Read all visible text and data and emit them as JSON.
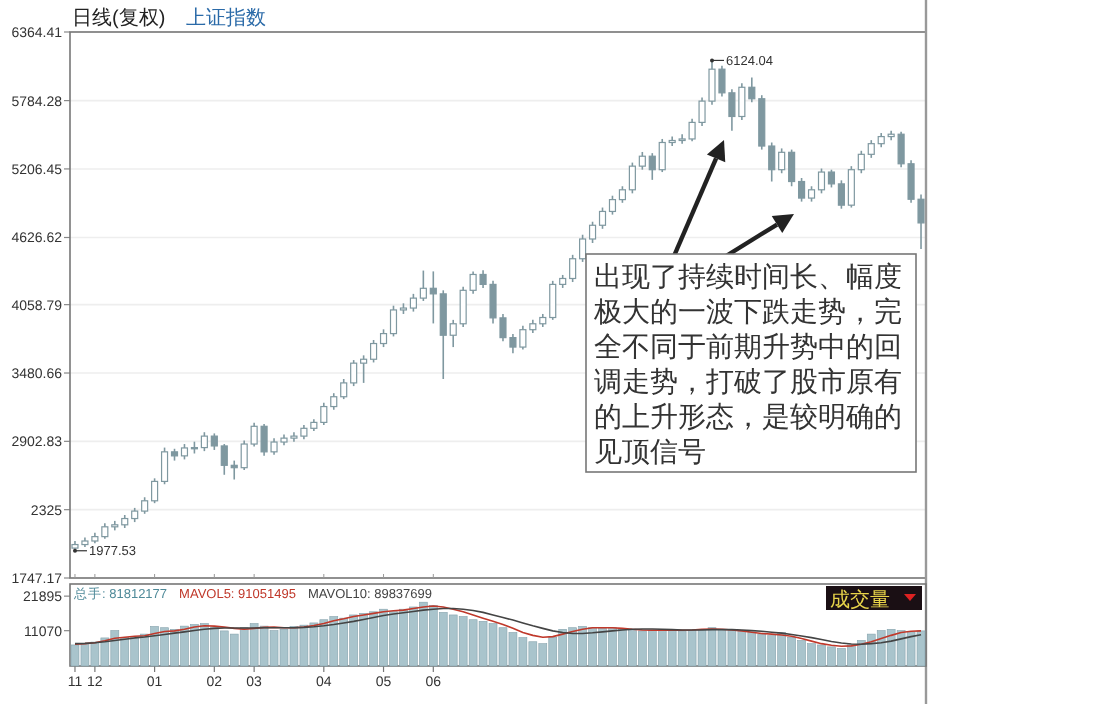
{
  "chart_data": [
    {
      "type": "candlestick",
      "color": "#7f98a0",
      "ylim": [
        1747.17,
        6364.41
      ],
      "yticks": [
        1747.17,
        2325.0,
        2902.83,
        3480.66,
        4058.79,
        4626.62,
        5206.45,
        5784.28,
        6364.41
      ],
      "grid": "y",
      "tick_labels": "y",
      "categories": [
        "11",
        null,
        "12",
        null,
        null,
        null,
        null,
        null,
        "01",
        null,
        null,
        null,
        null,
        null,
        "02",
        null,
        null,
        null,
        "03",
        null,
        null,
        null,
        null,
        null,
        null,
        "04",
        null,
        null,
        null,
        null,
        null,
        "05",
        null,
        null,
        null,
        null,
        "06",
        null,
        null,
        null,
        null,
        null,
        null,
        null,
        null,
        null,
        null,
        null,
        null,
        null,
        null,
        null,
        null,
        null,
        null,
        null,
        null,
        null,
        null,
        null,
        null,
        null,
        null,
        null,
        null,
        null,
        null,
        null,
        null,
        null,
        null,
        null,
        null,
        null,
        null,
        null,
        null,
        null,
        null,
        null,
        null,
        null,
        null,
        null,
        null,
        null
      ],
      "ohlc": [
        [
          2000,
          2060,
          1977.53,
          2030
        ],
        [
          2030,
          2090,
          2010,
          2060
        ],
        [
          2060,
          2130,
          2040,
          2097
        ],
        [
          2097,
          2210,
          2080,
          2180
        ],
        [
          2180,
          2230,
          2150,
          2197
        ],
        [
          2197,
          2280,
          2170,
          2250
        ],
        [
          2250,
          2340,
          2220,
          2313
        ],
        [
          2313,
          2430,
          2290,
          2400
        ],
        [
          2400,
          2590,
          2380,
          2564
        ],
        [
          2564,
          2850,
          2540,
          2814
        ],
        [
          2814,
          2840,
          2740,
          2780
        ],
        [
          2780,
          2880,
          2750,
          2847
        ],
        [
          2847,
          2900,
          2800,
          2850
        ],
        [
          2850,
          2980,
          2820,
          2947
        ],
        [
          2947,
          2970,
          2830,
          2864
        ],
        [
          2864,
          2880,
          2620,
          2700
        ],
        [
          2700,
          2740,
          2580,
          2680
        ],
        [
          2680,
          2910,
          2660,
          2880
        ],
        [
          2880,
          3060,
          2860,
          3030
        ],
        [
          3030,
          3050,
          2780,
          2814
        ],
        [
          2814,
          2930,
          2790,
          2897
        ],
        [
          2897,
          2960,
          2870,
          2930
        ],
        [
          2930,
          2980,
          2900,
          2947
        ],
        [
          2947,
          3040,
          2920,
          3013
        ],
        [
          3013,
          3090,
          2990,
          3063
        ],
        [
          3063,
          3230,
          3040,
          3197
        ],
        [
          3197,
          3310,
          3170,
          3280
        ],
        [
          3280,
          3430,
          3260,
          3397
        ],
        [
          3397,
          3590,
          3370,
          3564
        ],
        [
          3564,
          3630,
          3397,
          3597
        ],
        [
          3597,
          3760,
          3570,
          3730
        ],
        [
          3730,
          3850,
          3700,
          3814
        ],
        [
          3814,
          4050,
          3790,
          4014
        ],
        [
          4014,
          4070,
          3980,
          4030
        ],
        [
          4030,
          4150,
          4000,
          4114
        ],
        [
          4114,
          4347,
          4090,
          4197
        ],
        [
          4197,
          4340,
          3900,
          4150
        ],
        [
          4150,
          4180,
          3430,
          3800
        ],
        [
          3800,
          3930,
          3700,
          3897
        ],
        [
          3897,
          4210,
          3870,
          4180
        ],
        [
          4180,
          4340,
          4150,
          4314
        ],
        [
          4314,
          4350,
          4200,
          4230
        ],
        [
          4230,
          4260,
          3900,
          3947
        ],
        [
          3947,
          3980,
          3750,
          3780
        ],
        [
          3780,
          3810,
          3647,
          3700
        ],
        [
          3700,
          3880,
          3680,
          3847
        ],
        [
          3847,
          3930,
          3820,
          3897
        ],
        [
          3897,
          3980,
          3870,
          3950
        ],
        [
          3950,
          4260,
          3930,
          4230
        ],
        [
          4230,
          4310,
          4200,
          4280
        ],
        [
          4280,
          4480,
          4250,
          4447
        ],
        [
          4447,
          4650,
          4420,
          4614
        ],
        [
          4614,
          4760,
          4580,
          4730
        ],
        [
          4730,
          4880,
          4700,
          4847
        ],
        [
          4847,
          4980,
          4820,
          4947
        ],
        [
          4947,
          5060,
          4920,
          5030
        ],
        [
          5030,
          5260,
          5000,
          5230
        ],
        [
          5230,
          5350,
          5200,
          5314
        ],
        [
          5314,
          5340,
          5114,
          5200
        ],
        [
          5200,
          5460,
          5180,
          5430
        ],
        [
          5430,
          5480,
          5400,
          5447
        ],
        [
          5447,
          5500,
          5420,
          5460
        ],
        [
          5460,
          5630,
          5440,
          5600
        ],
        [
          5600,
          5810,
          5570,
          5780
        ],
        [
          5780,
          6124.04,
          5750,
          6050
        ],
        [
          6050,
          6080,
          5820,
          5850
        ],
        [
          5850,
          5880,
          5530,
          5650
        ],
        [
          5650,
          5930,
          5620,
          5897
        ],
        [
          5897,
          5980,
          5770,
          5800
        ],
        [
          5800,
          5830,
          5370,
          5400
        ],
        [
          5400,
          5430,
          5100,
          5200
        ],
        [
          5200,
          5380,
          5170,
          5347
        ],
        [
          5347,
          5370,
          5060,
          5100
        ],
        [
          5100,
          5130,
          4930,
          4960
        ],
        [
          4960,
          5060,
          4930,
          5030
        ],
        [
          5030,
          5210,
          5000,
          5180
        ],
        [
          5180,
          5200,
          5050,
          5080
        ],
        [
          5080,
          5110,
          4870,
          4900
        ],
        [
          4900,
          5230,
          4880,
          5200
        ],
        [
          5200,
          5360,
          5170,
          5330
        ],
        [
          5330,
          5450,
          5300,
          5420
        ],
        [
          5420,
          5510,
          5390,
          5480
        ],
        [
          5480,
          5530,
          5450,
          5500
        ],
        [
          5500,
          5520,
          5220,
          5250
        ],
        [
          5250,
          5280,
          4920,
          4950
        ],
        [
          4950,
          4990,
          4530,
          4750
        ]
      ],
      "annotations": [
        "日线(复权)",
        "上证指数",
        "6124.04",
        "1977.53",
        "出现了持续时间长、幅度极大的一波下跌走势，完全不同于前期升势中的回调走势，打破了股市原有的上升形态，是较明确的见顶信号"
      ]
    },
    {
      "type": "bar",
      "ylim": [
        0,
        25700
      ],
      "yticks": [
        11070,
        21895
      ],
      "legend": "top left",
      "categories": [
        "11",
        null,
        "12",
        null,
        null,
        null,
        null,
        null,
        "01",
        null,
        null,
        null,
        null,
        null,
        "02",
        null,
        null,
        null,
        "03",
        null,
        null,
        null,
        null,
        null,
        null,
        "04",
        null,
        null,
        null,
        null,
        null,
        "05",
        null,
        null,
        null,
        null,
        "06",
        null,
        null,
        null,
        null,
        null,
        null,
        null,
        null,
        null,
        null,
        null,
        null,
        null,
        null,
        null,
        null,
        null,
        null,
        null,
        null,
        null,
        null,
        null,
        null,
        null,
        null,
        null,
        null,
        null,
        null,
        null,
        null,
        null,
        null,
        null,
        null,
        null,
        null,
        null,
        null,
        null,
        null,
        null,
        null,
        null,
        null,
        null,
        null,
        null
      ],
      "series": [
        {
          "name": "总手: 81812177",
          "color": "#a9c4cc",
          "values": [
            6600,
            7000,
            7500,
            8800,
            11100,
            9000,
            8900,
            10000,
            12400,
            12000,
            11500,
            12500,
            13000,
            13300,
            12000,
            11000,
            10000,
            12000,
            13300,
            12500,
            11100,
            11500,
            12400,
            12800,
            13500,
            14500,
            15500,
            15000,
            16000,
            16500,
            17000,
            17800,
            17000,
            17800,
            18500,
            20000,
            19000,
            16800,
            16000,
            15500,
            14500,
            14000,
            13300,
            12000,
            10500,
            8900,
            7600,
            7000,
            9000,
            11500,
            12000,
            12400,
            12000,
            11800,
            12000,
            11500,
            11100,
            11000,
            11100,
            11500,
            11100,
            10800,
            11100,
            11500,
            12000,
            11500,
            11100,
            11000,
            10500,
            10000,
            9500,
            10500,
            9000,
            8000,
            7000,
            6600,
            6000,
            5500,
            6600,
            8000,
            10000,
            11100,
            11500,
            11100,
            10500,
            11000
          ]
        },
        {
          "type": "line",
          "name": "MAVOL5: 91051495",
          "color": "#c0392b",
          "values": [
            6800,
            7000,
            7300,
            7900,
            8700,
            9000,
            9300,
            9500,
            10200,
            10800,
            11000,
            11500,
            12200,
            12600,
            12500,
            12200,
            11800,
            11500,
            11800,
            12100,
            12200,
            12000,
            12000,
            12200,
            12700,
            13300,
            14200,
            14800,
            15500,
            16000,
            16500,
            17000,
            17300,
            17500,
            18000,
            18500,
            18800,
            18500,
            17800,
            17000,
            16000,
            15000,
            14000,
            13000,
            11800,
            10500,
            9600,
            9000,
            9200,
            10000,
            10800,
            11500,
            12000,
            12000,
            12000,
            11800,
            11500,
            11300,
            11200,
            11200,
            11200,
            11200,
            11300,
            11500,
            11600,
            11500,
            11300,
            11000,
            10600,
            10200,
            10000,
            9700,
            9300,
            8600,
            7800,
            7000,
            6500,
            6200,
            6300,
            6800,
            7600,
            8600,
            9600,
            10500,
            10900,
            11000
          ]
        },
        {
          "type": "line",
          "name": "MAVOL10: 89837699",
          "color": "#444444",
          "values": [
            7000,
            7100,
            7300,
            7600,
            8000,
            8400,
            8800,
            9100,
            9500,
            9900,
            10300,
            10700,
            11100,
            11500,
            11800,
            11900,
            11900,
            11900,
            11900,
            12000,
            12000,
            12000,
            12000,
            12100,
            12300,
            12600,
            13000,
            13500,
            14000,
            14600,
            15200,
            15800,
            16300,
            16700,
            17100,
            17500,
            17800,
            18000,
            18000,
            17800,
            17400,
            16800,
            16000,
            15200,
            14400,
            13500,
            12600,
            11800,
            11000,
            10500,
            10200,
            10200,
            10400,
            10700,
            11000,
            11300,
            11500,
            11600,
            11600,
            11500,
            11400,
            11300,
            11300,
            11300,
            11400,
            11400,
            11400,
            11300,
            11100,
            10900,
            10600,
            10300,
            9900,
            9400,
            8900,
            8300,
            7700,
            7200,
            6900,
            6800,
            7000,
            7300,
            7800,
            8500,
            9200,
            9800
          ]
        }
      ],
      "annotations": [
        "成交量"
      ]
    }
  ]
}
